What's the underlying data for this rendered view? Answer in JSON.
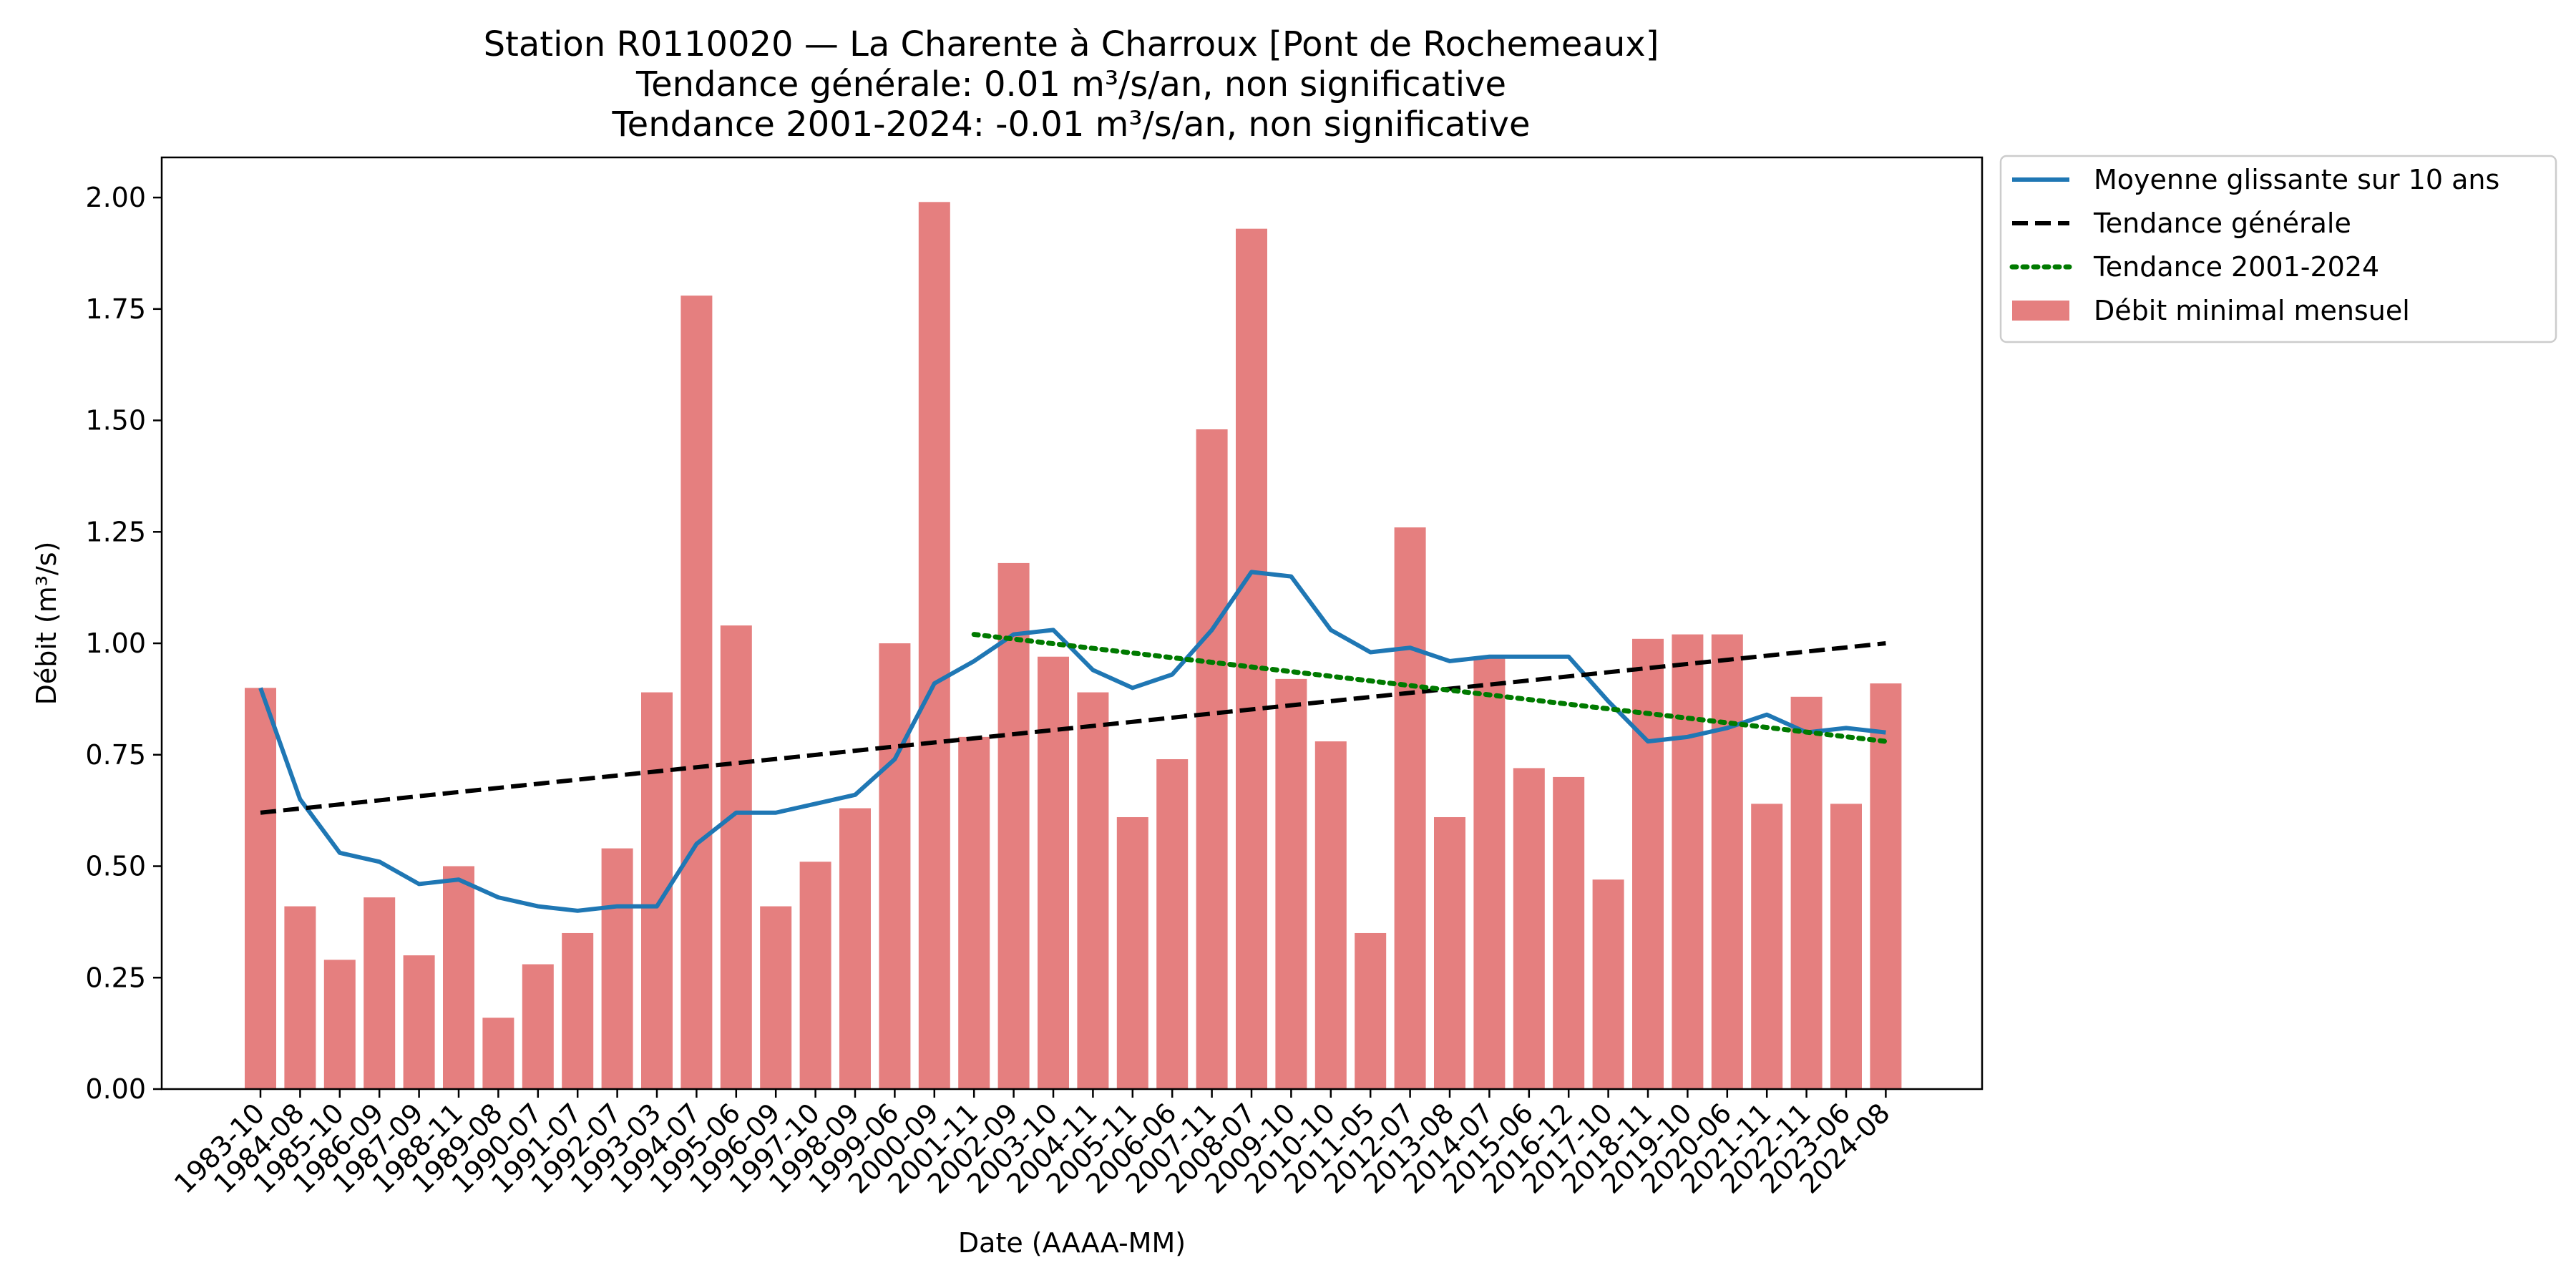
{
  "chart_data": {
    "type": "bar",
    "title": [
      "Station R0110020 — La Charente à Charroux [Pont de Rochemeaux]",
      "Tendance générale: 0.01 m³/s/an, non significative",
      "Tendance 2001-2024: -0.01 m³/s/an, non significative"
    ],
    "xlabel": "Date (AAAA-MM)",
    "ylabel": "Débit (m³/s)",
    "ylim": [
      0,
      2.09
    ],
    "yticks": [
      0.0,
      0.25,
      0.5,
      0.75,
      1.0,
      1.25,
      1.5,
      1.75,
      2.0
    ],
    "ytick_labels": [
      "0.00",
      "0.25",
      "0.50",
      "0.75",
      "1.00",
      "1.25",
      "1.50",
      "1.75",
      "2.00"
    ],
    "categories": [
      "1983-10",
      "1984-08",
      "1985-10",
      "1986-09",
      "1987-09",
      "1988-11",
      "1989-08",
      "1990-07",
      "1991-07",
      "1992-07",
      "1993-03",
      "1994-07",
      "1995-06",
      "1996-09",
      "1997-10",
      "1998-09",
      "1999-06",
      "2000-09",
      "2001-11",
      "2002-09",
      "2003-10",
      "2004-11",
      "2005-11",
      "2006-06",
      "2007-11",
      "2008-07",
      "2009-10",
      "2010-10",
      "2011-05",
      "2012-07",
      "2013-08",
      "2014-07",
      "2015-06",
      "2016-12",
      "2017-10",
      "2018-11",
      "2019-10",
      "2020-06",
      "2021-11",
      "2022-11",
      "2023-06",
      "2024-08"
    ],
    "series": [
      {
        "name": "Débit minimal mensuel",
        "kind": "bar",
        "color": "#e57f7f",
        "values": [
          0.9,
          0.41,
          0.29,
          0.43,
          0.3,
          0.5,
          0.16,
          0.28,
          0.35,
          0.54,
          0.89,
          1.78,
          1.04,
          0.41,
          0.51,
          0.63,
          1.0,
          1.99,
          0.79,
          1.18,
          0.97,
          0.89,
          0.61,
          0.74,
          1.48,
          1.93,
          0.92,
          0.78,
          0.35,
          1.26,
          0.61,
          0.97,
          0.72,
          0.7,
          0.47,
          1.01,
          1.02,
          1.02,
          0.64,
          0.88,
          0.64,
          0.91
        ]
      },
      {
        "name": "Moyenne glissante sur 10 ans",
        "kind": "line",
        "color": "#1f77b4",
        "style": "solid",
        "values": [
          0.9,
          0.65,
          0.53,
          0.51,
          0.46,
          0.47,
          0.43,
          0.41,
          0.4,
          0.41,
          0.41,
          0.55,
          0.62,
          0.62,
          0.64,
          0.66,
          0.74,
          0.91,
          0.96,
          1.02,
          1.03,
          0.94,
          0.9,
          0.93,
          1.03,
          1.16,
          1.15,
          1.03,
          0.98,
          0.99,
          0.96,
          0.97,
          0.97,
          0.97,
          0.87,
          0.78,
          0.79,
          0.81,
          0.84,
          0.8,
          0.81,
          0.8
        ]
      },
      {
        "name": "Tendance générale",
        "kind": "line",
        "color": "#000000",
        "style": "dashed",
        "points": [
          {
            "category": "1983-10",
            "value": 0.62
          },
          {
            "category": "2024-08",
            "value": 1.0
          }
        ]
      },
      {
        "name": "Tendance 2001-2024",
        "kind": "line",
        "color": "#007a00",
        "style": "dotted",
        "points": [
          {
            "category": "2001-11",
            "value": 1.02
          },
          {
            "category": "2024-08",
            "value": 0.78
          }
        ]
      }
    ],
    "legend": {
      "placement": "outside-top-right",
      "order": [
        "Moyenne glissante sur 10 ans",
        "Tendance générale",
        "Tendance 2001-2024",
        "Débit minimal mensuel"
      ]
    },
    "grid": false
  }
}
